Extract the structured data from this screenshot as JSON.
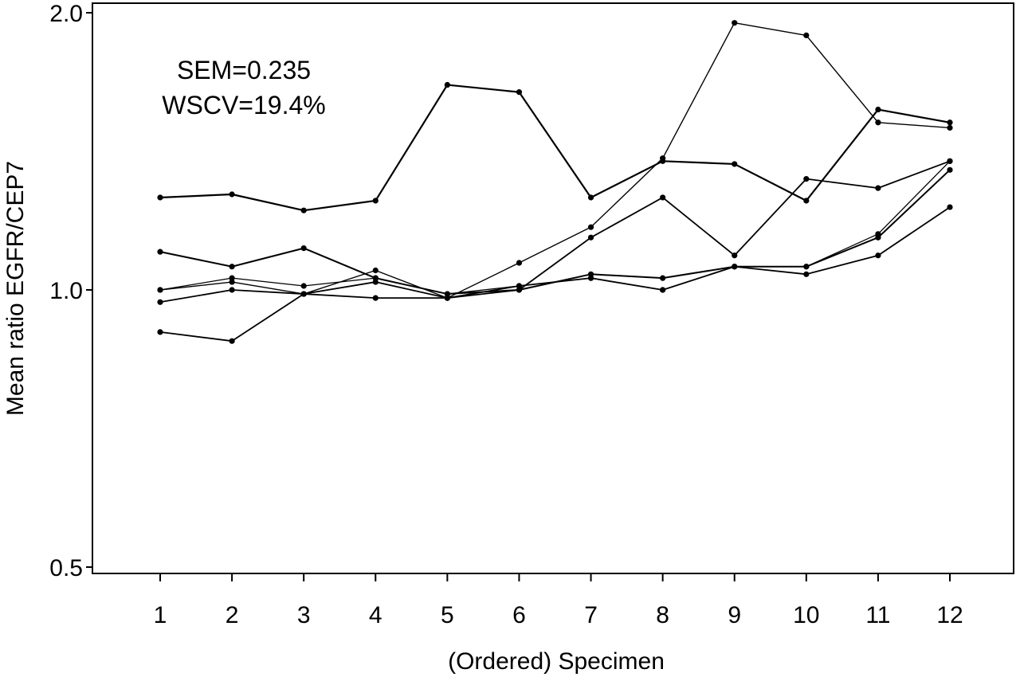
{
  "chart_data": {
    "type": "line",
    "title": "",
    "xlabel": "(Ordered) Specimen",
    "ylabel": "Mean ratio EGFR/CEP7",
    "y_scale": "log",
    "ylim": [
      0.5,
      2.0
    ],
    "y_ticks": [
      0.5,
      1.0,
      2.0
    ],
    "y_tick_labels": [
      "0.5",
      "1.0",
      "2.0"
    ],
    "x": [
      1,
      2,
      3,
      4,
      5,
      6,
      7,
      8,
      9,
      10,
      11,
      12
    ],
    "x_tick_labels": [
      "1",
      "2",
      "3",
      "4",
      "5",
      "6",
      "7",
      "8",
      "9",
      "10",
      "11",
      "12"
    ],
    "grid": false,
    "legend": "none",
    "annotations": [
      "SEM=0.235",
      "WSCV=19.4%"
    ],
    "line_color": "#000000",
    "series": [
      {
        "values": [
          1.26,
          1.27,
          1.22,
          1.25,
          1.67,
          1.64,
          1.26,
          1.38,
          1.37,
          1.25,
          1.57,
          1.52
        ]
      },
      {
        "values": [
          1.1,
          1.06,
          1.11,
          1.03,
          0.99,
          1.0,
          1.04,
          1.03,
          1.06,
          1.06,
          1.14,
          1.35
        ]
      },
      {
        "values": [
          1.0,
          1.02,
          0.99,
          1.05,
          0.98,
          1.07,
          1.17,
          1.39,
          1.95,
          1.89,
          1.52,
          1.5
        ]
      },
      {
        "values": [
          0.9,
          0.88,
          0.99,
          1.02,
          0.98,
          1.01,
          1.03,
          1.0,
          1.06,
          1.04,
          1.09,
          1.23
        ]
      },
      {
        "values": [
          0.97,
          1.0,
          0.99,
          0.98,
          0.98,
          1.0,
          1.14,
          1.26,
          1.09,
          1.32,
          1.29,
          1.38
        ]
      },
      {
        "values": [
          1.0,
          1.03,
          1.01,
          1.03,
          0.99,
          1.01,
          1.03,
          1.0,
          1.06,
          1.06,
          1.15,
          1.38
        ]
      }
    ]
  }
}
